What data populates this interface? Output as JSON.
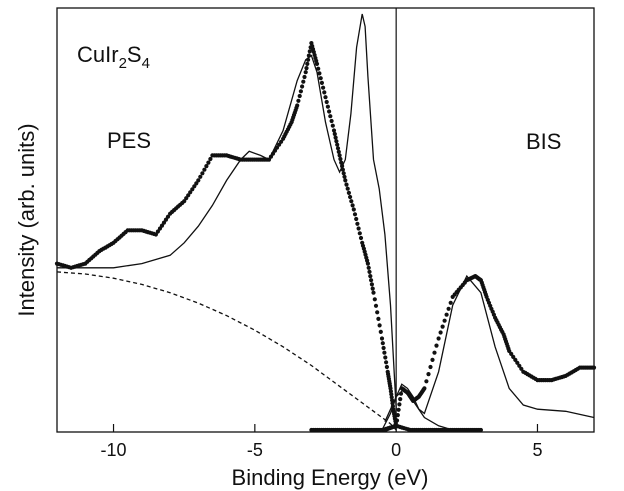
{
  "chart_data": {
    "type": "line",
    "xlabel": "Binding Energy (eV)",
    "ylabel": "Intensity (arb. units)",
    "xlim": [
      -12,
      7
    ],
    "ylim": [
      0,
      1.0
    ],
    "x_ticks": [
      "-10",
      "-5",
      "0",
      "5"
    ],
    "x_tick_values": [
      -10,
      -5,
      0,
      5
    ],
    "grid": false,
    "legend": "none",
    "annotations": {
      "compound_base": "CuIr",
      "compound_sub1": "2",
      "compound_mid": "S",
      "compound_sub2": "4",
      "pes_label": "PES",
      "bis_label": "BIS"
    },
    "divider_x": 0,
    "series": [
      {
        "style": "dots",
        "x": [
          -12,
          -11.5,
          -11,
          -10.5,
          -10,
          -9.5,
          -9,
          -8.5,
          -8,
          -7.5,
          -7,
          -6.5,
          -6,
          -5.5,
          -5,
          -4.5,
          -4,
          -3.7,
          -3.5,
          -3.2,
          -3.0,
          -2.8,
          -2.5,
          -2.2,
          -2.0,
          -1.8,
          -1.5,
          -1.2,
          -1.0,
          -0.8,
          -0.5,
          -0.3,
          -0.2,
          -0.1,
          0
        ],
        "y": [
          0.4,
          0.39,
          0.4,
          0.43,
          0.45,
          0.48,
          0.48,
          0.47,
          0.52,
          0.55,
          0.6,
          0.66,
          0.66,
          0.65,
          0.65,
          0.65,
          0.7,
          0.74,
          0.78,
          0.86,
          0.93,
          0.88,
          0.8,
          0.72,
          0.66,
          0.6,
          0.53,
          0.45,
          0.4,
          0.33,
          0.22,
          0.14,
          0.1,
          0.05,
          0.01
        ]
      },
      {
        "style": "solid",
        "x": [
          -12,
          -10,
          -9,
          -8,
          -7.5,
          -7,
          -6.5,
          -6,
          -5.5,
          -5.2,
          -4.8,
          -4.5,
          -4,
          -3.5,
          -3.2,
          -3.0,
          -2.8,
          -2.5,
          -2.2,
          -2.0,
          -1.8,
          -1.6,
          -1.4,
          -1.2,
          -1.1,
          -1.0,
          -0.8,
          -0.6,
          -0.4,
          -0.2,
          0
        ],
        "y": [
          0.39,
          0.39,
          0.4,
          0.42,
          0.45,
          0.49,
          0.54,
          0.6,
          0.65,
          0.67,
          0.66,
          0.65,
          0.72,
          0.84,
          0.89,
          0.9,
          0.86,
          0.74,
          0.65,
          0.62,
          0.65,
          0.76,
          0.92,
          1.0,
          0.97,
          0.85,
          0.65,
          0.58,
          0.47,
          0.3,
          0.05
        ]
      },
      {
        "style": "dashed",
        "x": [
          -12,
          -11,
          -10,
          -9,
          -8,
          -7,
          -6,
          -5,
          -4,
          -3,
          -2,
          -1.5,
          -1,
          -0.5,
          -0.2,
          0
        ],
        "y": [
          0.38,
          0.375,
          0.365,
          0.35,
          0.33,
          0.305,
          0.275,
          0.24,
          0.2,
          0.155,
          0.105,
          0.08,
          0.055,
          0.03,
          0.015,
          0.0
        ]
      },
      {
        "style": "dots",
        "x": [
          -3,
          -2.5,
          -2,
          -1.5,
          -1,
          -0.5,
          0,
          0.2,
          0.4,
          0.6,
          0.8,
          1,
          1.5,
          2,
          2.5,
          2.8,
          3,
          3.2,
          3.5,
          3.8,
          4,
          4.5,
          5,
          5.5,
          6,
          6.5,
          7
        ],
        "y": [
          0.0,
          0.0,
          0.0,
          0.0,
          0.0,
          0.0,
          0.01,
          0.1,
          0.09,
          0.07,
          0.08,
          0.1,
          0.22,
          0.32,
          0.36,
          0.37,
          0.36,
          0.32,
          0.27,
          0.23,
          0.19,
          0.14,
          0.12,
          0.12,
          0.13,
          0.15,
          0.15
        ]
      },
      {
        "style": "dots",
        "x": [
          -0.4,
          0,
          0.5,
          1,
          1.5,
          2,
          2.5,
          3
        ],
        "y": [
          0.0,
          0.01,
          0.0,
          0.0,
          0.0,
          0.0,
          0.0,
          0.0
        ]
      },
      {
        "style": "solid",
        "x": [
          -0.5,
          -0.2,
          0,
          0.2,
          0.4,
          0.6,
          0.8,
          1.0,
          1.5,
          2.0,
          2.5,
          3.0,
          3.5,
          4.0,
          4.5,
          5.0,
          6.0,
          7.0
        ],
        "y": [
          0.0,
          0.04,
          0.08,
          0.11,
          0.1,
          0.08,
          0.05,
          0.04,
          0.14,
          0.3,
          0.37,
          0.33,
          0.2,
          0.1,
          0.06,
          0.05,
          0.045,
          0.03
        ]
      },
      {
        "style": "solid",
        "x": [
          -0.4,
          0,
          0.3,
          0.6,
          1.0,
          1.5,
          2.0,
          2.5,
          3.0
        ],
        "y": [
          0.02,
          0.08,
          0.1,
          0.07,
          0.03,
          0.01,
          0.0,
          0.0,
          0.0
        ]
      }
    ]
  }
}
